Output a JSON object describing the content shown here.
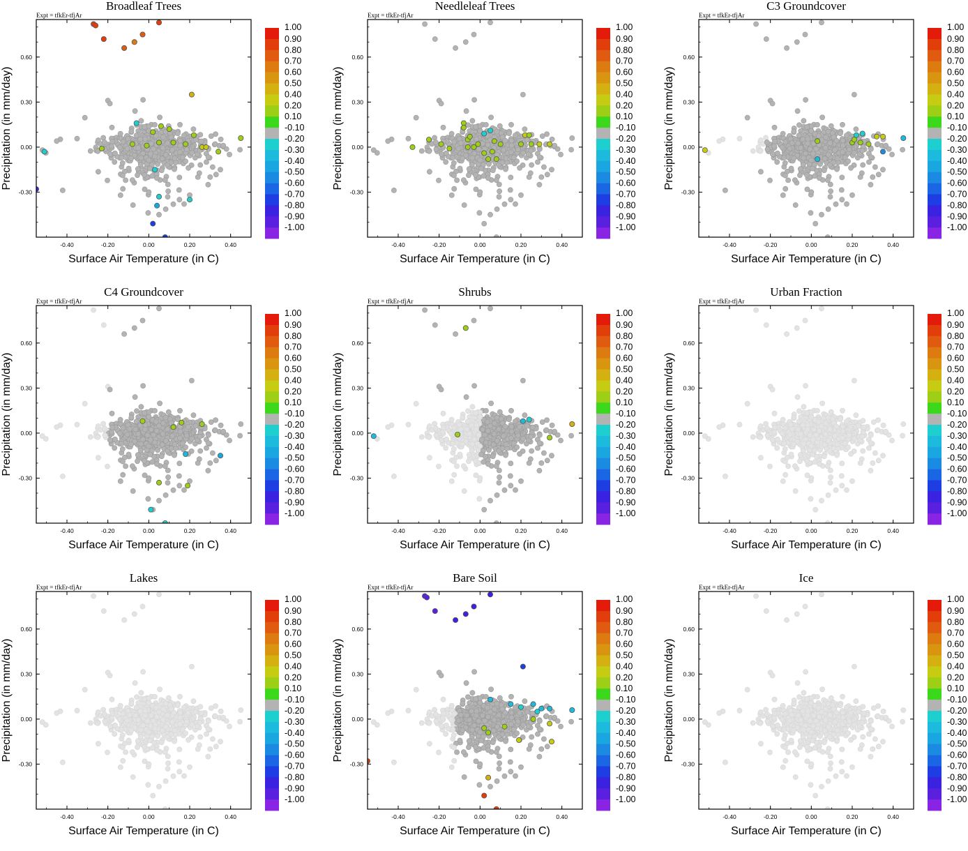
{
  "figure": {
    "expt_label": "Expt = tfkEr-tfjAr",
    "x_axis_label": "Surface Air Temperature (in C)",
    "y_axis_label": "Precipitation (in mm/day)",
    "x_tick_labels": [
      "-0.40",
      "-0.20",
      "0.00",
      "0.20",
      "0.40"
    ],
    "y_tick_labels": [
      "0.60",
      "0.30",
      "0.00",
      "-0.30"
    ]
  },
  "colorbar": {
    "labels": [
      "1.00",
      "0.90",
      "0.80",
      "0.70",
      "0.60",
      "0.50",
      "0.40",
      "0.20",
      "0.10",
      "-0.10",
      "-0.20",
      "-0.30",
      "-0.40",
      "-0.50",
      "-0.60",
      "-0.70",
      "-0.80",
      "-0.90",
      "-1.00"
    ],
    "colors": [
      "#e41a0a",
      "#e23e0c",
      "#e05a10",
      "#dd7a10",
      "#d99510",
      "#d4b010",
      "#c6cc12",
      "#9ccf16",
      "#3cd81c",
      "#b3b3b3",
      "#1ecfd0",
      "#1cbadc",
      "#1aa6e0",
      "#1a8ae2",
      "#1a66e4",
      "#1e3ee4",
      "#3a22e0",
      "#5a20e0",
      "#8a24e4"
    ]
  },
  "colors": {
    "background_point": "#e3e3e3",
    "neutral_point": "#b3b3b3"
  },
  "chart_data": [
    {
      "type": "scatter",
      "title": "Broadleaf Trees",
      "xlabel": "Surface Air Temperature (in C)",
      "ylabel": "Precipitation (in mm/day)",
      "xlim": [
        -0.55,
        0.5
      ],
      "ylim": [
        -0.6,
        0.85
      ],
      "colored_points": [
        {
          "x": -0.27,
          "y": 0.82,
          "v": 0.85
        },
        {
          "x": -0.26,
          "y": 0.81,
          "v": 0.85
        },
        {
          "x": 0.05,
          "y": 0.83,
          "v": 0.85
        },
        {
          "x": -0.22,
          "y": 0.72,
          "v": 0.82
        },
        {
          "x": -0.03,
          "y": 0.75,
          "v": 0.78
        },
        {
          "x": -0.07,
          "y": 0.7,
          "v": 0.62
        },
        {
          "x": -0.12,
          "y": 0.66,
          "v": 0.78
        },
        {
          "x": 0.21,
          "y": 0.35,
          "v": 0.45
        },
        {
          "x": -0.55,
          "y": -0.28,
          "v": -0.85
        },
        {
          "x": 0.02,
          "y": -0.51,
          "v": -0.75
        },
        {
          "x": 0.08,
          "y": -0.6,
          "v": -0.75
        },
        {
          "x": 0.04,
          "y": -0.39,
          "v": -0.45
        },
        {
          "x": 0.05,
          "y": -0.33,
          "v": -0.25
        },
        {
          "x": 0.2,
          "y": -0.35,
          "v": -0.25
        },
        {
          "x": -0.51,
          "y": -0.03,
          "v": -0.25
        },
        {
          "x": -0.23,
          "y": -0.01,
          "v": 0.15
        },
        {
          "x": 0.02,
          "y": 0.1,
          "v": 0.15
        },
        {
          "x": 0.06,
          "y": 0.14,
          "v": 0.15
        },
        {
          "x": 0.1,
          "y": 0.12,
          "v": 0.15
        },
        {
          "x": 0.22,
          "y": 0.08,
          "v": 0.15
        },
        {
          "x": 0.26,
          "y": 0.0,
          "v": 0.3
        },
        {
          "x": 0.28,
          "y": 0.0,
          "v": 0.3
        },
        {
          "x": 0.34,
          "y": -0.03,
          "v": 0.15
        },
        {
          "x": 0.45,
          "y": 0.06,
          "v": 0.15
        },
        {
          "x": -0.01,
          "y": 0.01,
          "v": 0.15
        },
        {
          "x": 0.05,
          "y": 0.03,
          "v": 0.15
        },
        {
          "x": 0.12,
          "y": 0.03,
          "v": 0.15
        },
        {
          "x": 0.18,
          "y": 0.02,
          "v": 0.15
        },
        {
          "x": -0.08,
          "y": 0.02,
          "v": 0.15
        },
        {
          "x": -0.06,
          "y": 0.16,
          "v": -0.25
        },
        {
          "x": 0.03,
          "y": -0.15,
          "v": -0.25
        }
      ]
    },
    {
      "type": "scatter",
      "title": "Needleleaf Trees",
      "xlabel": "Surface Air Temperature (in C)",
      "ylabel": "Precipitation (in mm/day)",
      "xlim": [
        -0.55,
        0.5
      ],
      "ylim": [
        -0.6,
        0.85
      ],
      "colored_points": [
        {
          "x": -0.33,
          "y": 0.0,
          "v": 0.15
        },
        {
          "x": -0.25,
          "y": 0.05,
          "v": 0.15
        },
        {
          "x": -0.19,
          "y": 0.02,
          "v": 0.15
        },
        {
          "x": -0.15,
          "y": -0.01,
          "v": 0.15
        },
        {
          "x": -0.08,
          "y": 0.16,
          "v": 0.15
        },
        {
          "x": -0.08,
          "y": 0.13,
          "v": 0.15
        },
        {
          "x": -0.06,
          "y": 0.05,
          "v": 0.15
        },
        {
          "x": -0.06,
          "y": 0.0,
          "v": 0.15
        },
        {
          "x": -0.05,
          "y": 0.07,
          "v": 0.15
        },
        {
          "x": -0.03,
          "y": 0.0,
          "v": 0.15
        },
        {
          "x": -0.01,
          "y": 0.02,
          "v": 0.15
        },
        {
          "x": 0.02,
          "y": -0.04,
          "v": 0.15
        },
        {
          "x": 0.04,
          "y": -0.08,
          "v": 0.15
        },
        {
          "x": 0.06,
          "y": -0.03,
          "v": 0.15
        },
        {
          "x": 0.07,
          "y": 0.04,
          "v": 0.15
        },
        {
          "x": 0.08,
          "y": -0.08,
          "v": 0.15
        },
        {
          "x": 0.1,
          "y": 0.02,
          "v": 0.15
        },
        {
          "x": 0.2,
          "y": 0.02,
          "v": 0.15
        },
        {
          "x": 0.22,
          "y": 0.08,
          "v": 0.3
        },
        {
          "x": 0.24,
          "y": 0.08,
          "v": 0.15
        },
        {
          "x": 0.25,
          "y": 0.02,
          "v": 0.15
        },
        {
          "x": 0.29,
          "y": 0.02,
          "v": 0.3
        },
        {
          "x": 0.34,
          "y": 0.02,
          "v": 0.3
        },
        {
          "x": 0.02,
          "y": 0.09,
          "v": -0.25
        },
        {
          "x": 0.05,
          "y": 0.11,
          "v": -0.25
        }
      ]
    },
    {
      "type": "scatter",
      "title": "C3 Groundcover",
      "xlabel": "Surface Air Temperature (in C)",
      "ylabel": "Precipitation (in mm/day)",
      "xlim": [
        -0.55,
        0.5
      ],
      "ylim": [
        -0.6,
        0.85
      ],
      "colored_points": [
        {
          "x": -0.52,
          "y": -0.02,
          "v": 0.3
        },
        {
          "x": 0.03,
          "y": 0.04,
          "v": 0.15
        },
        {
          "x": 0.2,
          "y": 0.03,
          "v": 0.15
        },
        {
          "x": 0.21,
          "y": 0.05,
          "v": 0.15
        },
        {
          "x": 0.24,
          "y": 0.03,
          "v": 0.15
        },
        {
          "x": 0.28,
          "y": 0.02,
          "v": 0.15
        },
        {
          "x": 0.32,
          "y": 0.07,
          "v": 0.3
        },
        {
          "x": 0.35,
          "y": 0.07,
          "v": 0.3
        },
        {
          "x": 0.22,
          "y": 0.08,
          "v": -0.25
        },
        {
          "x": 0.25,
          "y": 0.09,
          "v": -0.25
        },
        {
          "x": 0.45,
          "y": 0.06,
          "v": -0.35
        },
        {
          "x": 0.35,
          "y": -0.03,
          "v": -0.55
        },
        {
          "x": 0.03,
          "y": -0.08,
          "v": -0.35
        }
      ]
    },
    {
      "type": "scatter",
      "title": "C4 Groundcover",
      "xlabel": "Surface Air Temperature (in C)",
      "ylabel": "Precipitation (in mm/day)",
      "xlim": [
        -0.55,
        0.5
      ],
      "ylim": [
        -0.6,
        0.85
      ],
      "colored_points": [
        {
          "x": -0.03,
          "y": 0.08,
          "v": 0.15
        },
        {
          "x": 0.12,
          "y": 0.04,
          "v": 0.15
        },
        {
          "x": 0.16,
          "y": 0.07,
          "v": 0.15
        },
        {
          "x": 0.26,
          "y": 0.06,
          "v": 0.15
        },
        {
          "x": 0.05,
          "y": -0.33,
          "v": 0.15
        },
        {
          "x": 0.19,
          "y": -0.35,
          "v": 0.15
        },
        {
          "x": 0.18,
          "y": -0.14,
          "v": -0.35
        },
        {
          "x": 0.35,
          "y": -0.15,
          "v": -0.45
        },
        {
          "x": 0.01,
          "y": -0.51,
          "v": -0.25
        },
        {
          "x": 0.08,
          "y": -0.6,
          "v": -0.25
        }
      ]
    },
    {
      "type": "scatter",
      "title": "Shrubs",
      "xlabel": "Surface Air Temperature (in C)",
      "ylabel": "Precipitation (in mm/day)",
      "xlim": [
        -0.55,
        0.5
      ],
      "ylim": [
        -0.6,
        0.85
      ],
      "colored_points": [
        {
          "x": -0.07,
          "y": 0.7,
          "v": 0.15
        },
        {
          "x": -0.52,
          "y": -0.02,
          "v": -0.35
        },
        {
          "x": -0.11,
          "y": -0.01,
          "v": 0.15
        },
        {
          "x": 0.21,
          "y": 0.08,
          "v": -0.35
        },
        {
          "x": 0.24,
          "y": 0.09,
          "v": -0.25
        },
        {
          "x": 0.34,
          "y": -0.03,
          "v": 0.15
        },
        {
          "x": 0.45,
          "y": 0.06,
          "v": 0.45
        }
      ]
    },
    {
      "type": "scatter",
      "title": "Urban Fraction",
      "xlabel": "Surface Air Temperature (in C)",
      "ylabel": "Precipitation (in mm/day)",
      "xlim": [
        -0.55,
        0.5
      ],
      "ylim": [
        -0.6,
        0.85
      ],
      "colored_points": []
    },
    {
      "type": "scatter",
      "title": "Lakes",
      "xlabel": "Surface Air Temperature (in C)",
      "ylabel": "Precipitation (in mm/day)",
      "xlim": [
        -0.55,
        0.5
      ],
      "ylim": [
        -0.6,
        0.85
      ],
      "colored_points": []
    },
    {
      "type": "scatter",
      "title": "Bare Soil",
      "xlabel": "Surface Air Temperature (in C)",
      "ylabel": "Precipitation (in mm/day)",
      "xlim": [
        -0.55,
        0.5
      ],
      "ylim": [
        -0.6,
        0.85
      ],
      "colored_points": [
        {
          "x": -0.27,
          "y": 0.82,
          "v": -0.95
        },
        {
          "x": -0.26,
          "y": 0.81,
          "v": -0.95
        },
        {
          "x": 0.05,
          "y": 0.83,
          "v": -0.85
        },
        {
          "x": -0.22,
          "y": 0.72,
          "v": -0.95
        },
        {
          "x": -0.03,
          "y": 0.75,
          "v": -0.85
        },
        {
          "x": -0.07,
          "y": 0.7,
          "v": -0.85
        },
        {
          "x": -0.12,
          "y": 0.66,
          "v": -0.85
        },
        {
          "x": 0.21,
          "y": 0.35,
          "v": -0.75
        },
        {
          "x": -0.55,
          "y": -0.28,
          "v": 0.85
        },
        {
          "x": 0.02,
          "y": -0.51,
          "v": 0.85
        },
        {
          "x": 0.08,
          "y": -0.6,
          "v": 0.85
        },
        {
          "x": 0.04,
          "y": -0.39,
          "v": 0.45
        },
        {
          "x": 0.05,
          "y": 0.13,
          "v": -0.35
        },
        {
          "x": 0.15,
          "y": 0.1,
          "v": -0.35
        },
        {
          "x": 0.2,
          "y": 0.08,
          "v": -0.25
        },
        {
          "x": 0.26,
          "y": 0.1,
          "v": -0.35
        },
        {
          "x": 0.3,
          "y": 0.07,
          "v": -0.35
        },
        {
          "x": 0.34,
          "y": 0.07,
          "v": -0.35
        },
        {
          "x": 0.45,
          "y": 0.06,
          "v": -0.35
        },
        {
          "x": 0.28,
          "y": 0.05,
          "v": -0.25
        },
        {
          "x": 0.02,
          "y": -0.06,
          "v": 0.15
        },
        {
          "x": 0.04,
          "y": -0.09,
          "v": 0.15
        },
        {
          "x": 0.12,
          "y": -0.05,
          "v": 0.15
        },
        {
          "x": 0.19,
          "y": -0.14,
          "v": 0.3
        },
        {
          "x": 0.26,
          "y": 0.0,
          "v": 0.15
        },
        {
          "x": 0.34,
          "y": -0.03,
          "v": 0.3
        },
        {
          "x": 0.35,
          "y": -0.15,
          "v": 0.3
        }
      ]
    },
    {
      "type": "scatter",
      "title": "Ice",
      "xlabel": "Surface Air Temperature (in C)",
      "ylabel": "Precipitation (in mm/day)",
      "xlim": [
        -0.55,
        0.5
      ],
      "ylim": [
        -0.6,
        0.85
      ],
      "colored_points": []
    }
  ]
}
